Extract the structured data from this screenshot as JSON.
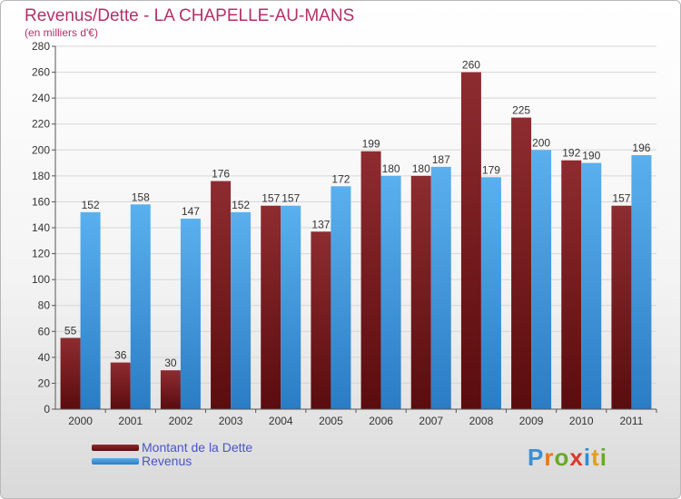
{
  "title": "Revenus/Dette - LA CHAPELLE-AU-MANS",
  "subtitle": "(en milliers d'€)",
  "brand": {
    "letters": [
      "P",
      "r",
      "o",
      "x",
      "i",
      "t",
      "i"
    ],
    "colors": [
      "#3b8fd4",
      "#e8781a",
      "#6aa829",
      "#d83a2a",
      "#2b8fd4",
      "#e0a020",
      "#6aa829"
    ]
  },
  "colors": {
    "dette_top": "#8e2c30",
    "dette_bottom": "#5a0c0e",
    "revenus_top": "#5ab0ee",
    "revenus_bottom": "#2a7cc4",
    "grid": "#d6d6d6",
    "axis_text": "#333333",
    "title": "#b3306a",
    "legend_text": "#4a54c8"
  },
  "chart_data": {
    "type": "bar",
    "title": "Revenus/Dette - LA CHAPELLE-AU-MANS",
    "ylabel": "(en milliers d'€)",
    "categories": [
      "2000",
      "2001",
      "2002",
      "2003",
      "2004",
      "2005",
      "2006",
      "2007",
      "2008",
      "2009",
      "2010",
      "2011"
    ],
    "series": [
      {
        "name": "Montant de la Dette",
        "values": [
          55,
          36,
          30,
          176,
          157,
          137,
          199,
          180,
          260,
          225,
          192,
          157
        ]
      },
      {
        "name": "Revenus",
        "values": [
          152,
          158,
          147,
          152,
          157,
          172,
          180,
          187,
          179,
          200,
          190,
          196
        ]
      }
    ],
    "ylim": [
      0,
      280
    ],
    "yticks": [
      0,
      20,
      40,
      60,
      80,
      100,
      120,
      140,
      160,
      180,
      200,
      220,
      240,
      260,
      280
    ],
    "grid": true,
    "legend": "bottom-left"
  }
}
